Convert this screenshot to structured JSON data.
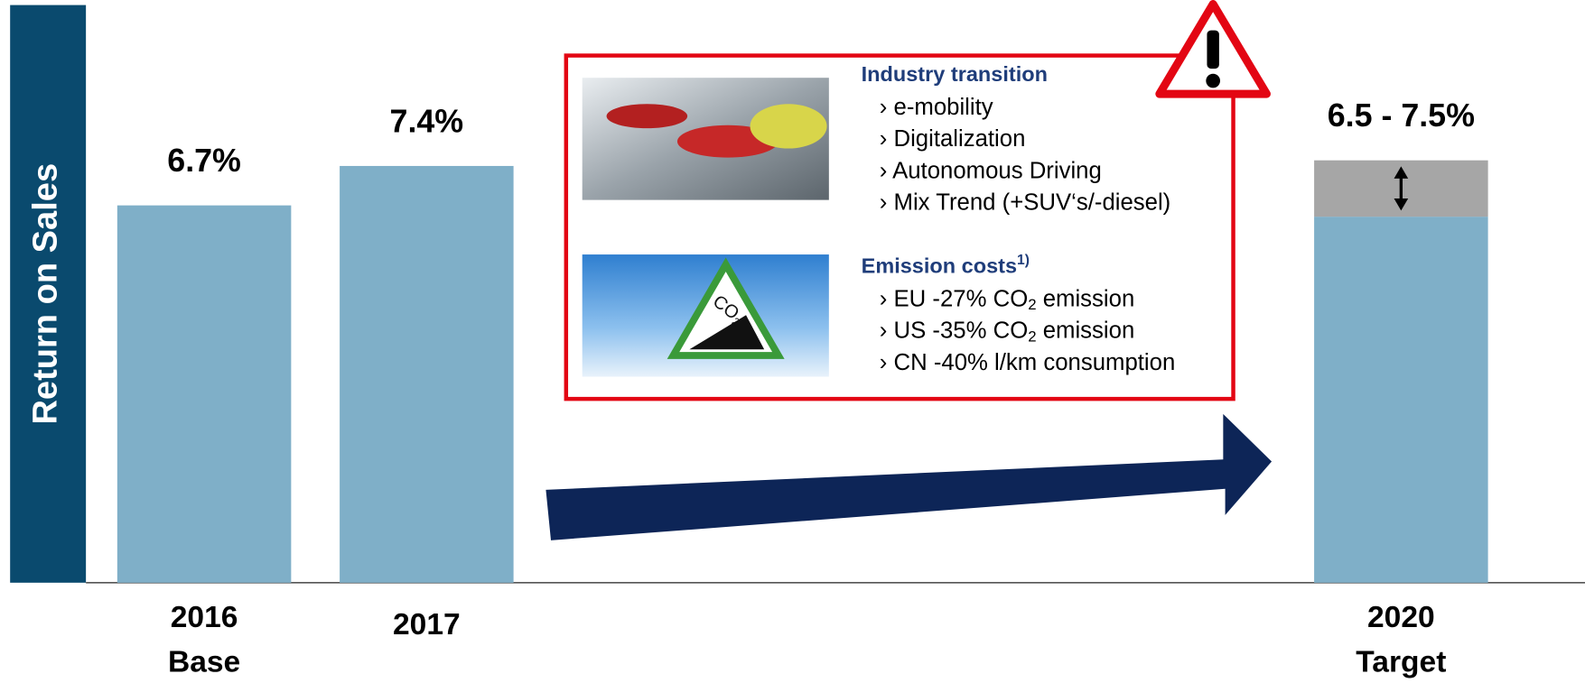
{
  "chart_data": {
    "type": "bar",
    "ylabel": "Return on Sales",
    "categories": [
      [
        "2016",
        "Base"
      ],
      [
        "2017"
      ],
      [
        "2020",
        "Target"
      ]
    ],
    "values": [
      6.7,
      7.4,
      6.5
    ],
    "high": [
      null,
      null,
      7.5
    ],
    "value_labels": [
      "6.7%",
      "7.4%",
      "6.5 - 7.5%"
    ],
    "color": "#7fafc8",
    "range_color": "#a6a6a6",
    "ylim": [
      0,
      8.5
    ],
    "annotation": {
      "sign_text": [
        "CO",
        "2"
      ],
      "sections": [
        {
          "title": [
            "Industry transition"
          ],
          "items": [
            [
              "› e-mobility"
            ],
            [
              "› Digitalization"
            ],
            [
              "› Autonomous Driving"
            ],
            [
              "› Mix Trend (+SUV‘s/-diesel)"
            ]
          ]
        },
        {
          "title": [
            "Emission costs",
            "1)"
          ],
          "items": [
            [
              "› EU -27% CO",
              "2",
              " emission"
            ],
            [
              "› US -35% CO",
              "2",
              " emission"
            ],
            [
              "› CN -40% l/km consumption"
            ]
          ]
        }
      ]
    }
  }
}
